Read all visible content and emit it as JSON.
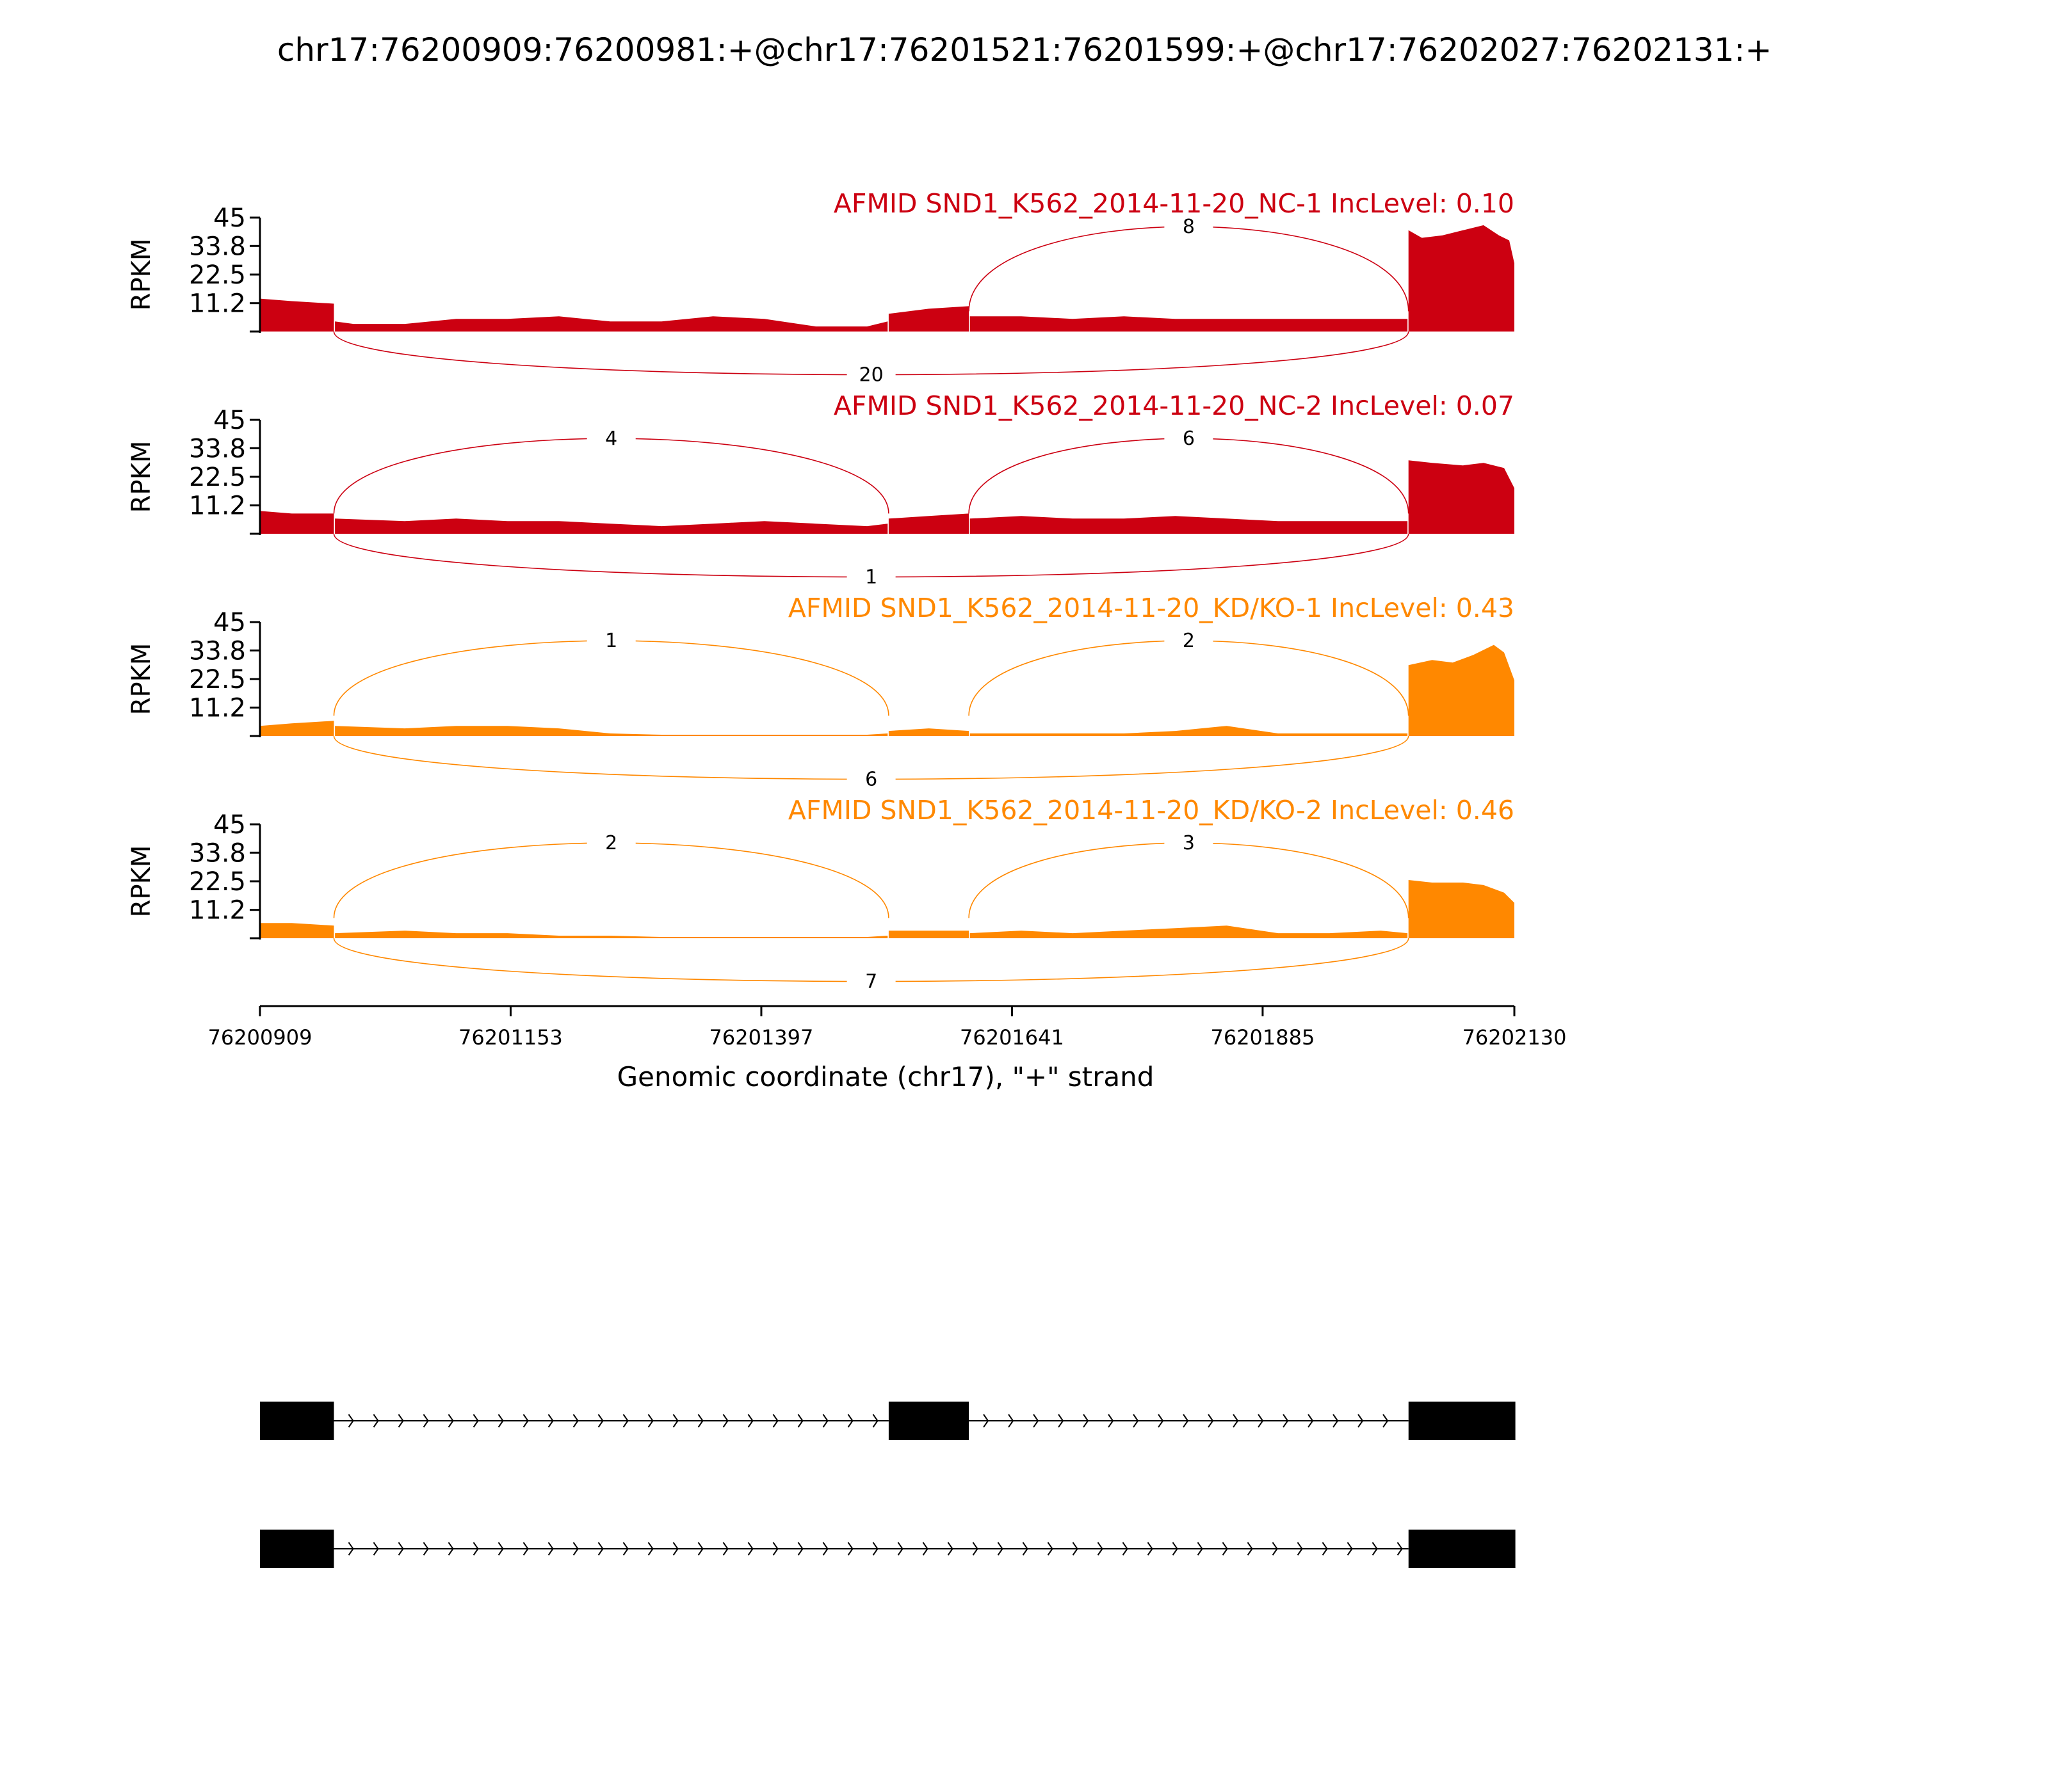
{
  "figure": {
    "title": "chr17:76200909:76200981:+@chr17:76201521:76201599:+@chr17:76202027:76202131:+"
  },
  "chart_data": {
    "type": "area",
    "title": "chr17:76200909:76200981:+@chr17:76201521:76201599:+@chr17:76202027:76202131:+",
    "xlabel": "Genomic coordinate (chr17), \"+\" strand",
    "ylabel": "RPKM",
    "xlim": [
      76200909,
      76202130
    ],
    "x_ticks": [
      "76200909",
      "76201153",
      "76201397",
      "76201641",
      "76201885",
      "76202130"
    ],
    "ylim": [
      0,
      45
    ],
    "y_ticks": [
      "45",
      "33.8",
      "22.5",
      "11.2"
    ],
    "exons": [
      [
        76200909,
        76200981
      ],
      [
        76201521,
        76201599
      ],
      [
        76202027,
        76202131
      ]
    ],
    "panels": [
      {
        "name": "AFMID SND1_K562_2014-11-20_NC-1 IncLevel: 0.10",
        "color": "#cc0011",
        "segments": [
          {
            "x": [
              76200909,
              76200940,
              76200981
            ],
            "y": [
              13,
              12,
              11
            ]
          },
          {
            "x": [
              76200982,
              76201000,
              76201050,
              76201100,
              76201150,
              76201200,
              76201250,
              76201300,
              76201350,
              76201400,
              76201450,
              76201500,
              76201520
            ],
            "y": [
              4,
              3,
              3,
              5,
              5,
              6,
              4,
              4,
              6,
              5,
              2,
              2,
              4
            ]
          },
          {
            "x": [
              76201521,
              76201560,
              76201599
            ],
            "y": [
              7,
              9,
              10
            ]
          },
          {
            "x": [
              76201600,
              76201650,
              76201700,
              76201750,
              76201800,
              76201850,
              76201900,
              76201950,
              76202000,
              76202026
            ],
            "y": [
              6,
              6,
              5,
              6,
              5,
              5,
              5,
              5,
              5,
              5
            ]
          },
          {
            "x": [
              76202027,
              76202040,
              76202060,
              76202080,
              76202100,
              76202115,
              76202125,
              76202130
            ],
            "y": [
              40,
              37,
              38,
              40,
              42,
              38,
              36,
              27
            ]
          }
        ],
        "junctions": [
          {
            "count": "8",
            "from": 76201599,
            "to": 76202027,
            "side": "above"
          },
          {
            "count": "20",
            "from": 76200981,
            "to": 76202027,
            "side": "below"
          }
        ]
      },
      {
        "name": "AFMID SND1_K562_2014-11-20_NC-2 IncLevel: 0.07",
        "color": "#cc0011",
        "segments": [
          {
            "x": [
              76200909,
              76200940,
              76200981
            ],
            "y": [
              9,
              8,
              8
            ]
          },
          {
            "x": [
              76200982,
              76201050,
              76201100,
              76201150,
              76201200,
              76201250,
              76201300,
              76201350,
              76201400,
              76201450,
              76201500,
              76201520
            ],
            "y": [
              6,
              5,
              6,
              5,
              5,
              4,
              3,
              4,
              5,
              4,
              3,
              4
            ]
          },
          {
            "x": [
              76201521,
              76201560,
              76201599
            ],
            "y": [
              6,
              7,
              8
            ]
          },
          {
            "x": [
              76201600,
              76201650,
              76201700,
              76201750,
              76201800,
              76201850,
              76201900,
              76201950,
              76202000,
              76202026
            ],
            "y": [
              6,
              7,
              6,
              6,
              7,
              6,
              5,
              5,
              5,
              5
            ]
          },
          {
            "x": [
              76202027,
              76202050,
              76202080,
              76202100,
              76202120,
              76202130
            ],
            "y": [
              29,
              28,
              27,
              28,
              26,
              18
            ]
          }
        ],
        "junctions": [
          {
            "count": "4",
            "from": 76200981,
            "to": 76201521,
            "side": "above"
          },
          {
            "count": "6",
            "from": 76201599,
            "to": 76202027,
            "side": "above"
          },
          {
            "count": "1",
            "from": 76200981,
            "to": 76202027,
            "side": "below"
          }
        ]
      },
      {
        "name": "AFMID SND1_K562_2014-11-20_KD/KO-1 IncLevel: 0.43",
        "color": "#ff8800",
        "segments": [
          {
            "x": [
              76200909,
              76200940,
              76200981
            ],
            "y": [
              4,
              5,
              6
            ]
          },
          {
            "x": [
              76200982,
              76201050,
              76201100,
              76201150,
              76201200,
              76201250,
              76201300,
              76201350,
              76201400,
              76201450,
              76201500,
              76201520
            ],
            "y": [
              4,
              3,
              4,
              4,
              3,
              1,
              0.5,
              0.5,
              0.5,
              0.5,
              0.5,
              1
            ]
          },
          {
            "x": [
              76201521,
              76201560,
              76201599
            ],
            "y": [
              2,
              3,
              2
            ]
          },
          {
            "x": [
              76201600,
              76201650,
              76201700,
              76201750,
              76201800,
              76201850,
              76201900,
              76201950,
              76202000,
              76202026
            ],
            "y": [
              1,
              1,
              1,
              1,
              2,
              4,
              1,
              1,
              1,
              1
            ]
          },
          {
            "x": [
              76202027,
              76202050,
              76202070,
              76202090,
              76202110,
              76202120,
              76202130
            ],
            "y": [
              28,
              30,
              29,
              32,
              36,
              33,
              22
            ]
          }
        ],
        "junctions": [
          {
            "count": "1",
            "from": 76200981,
            "to": 76201521,
            "side": "above"
          },
          {
            "count": "2",
            "from": 76201599,
            "to": 76202027,
            "side": "above"
          },
          {
            "count": "6",
            "from": 76200981,
            "to": 76202027,
            "side": "below"
          }
        ]
      },
      {
        "name": "AFMID SND1_K562_2014-11-20_KD/KO-2 IncLevel: 0.46",
        "color": "#ff8800",
        "segments": [
          {
            "x": [
              76200909,
              76200940,
              76200981
            ],
            "y": [
              6,
              6,
              5
            ]
          },
          {
            "x": [
              76200982,
              76201050,
              76201100,
              76201150,
              76201200,
              76201250,
              76201300,
              76201350,
              76201400,
              76201450,
              76201500,
              76201520
            ],
            "y": [
              2,
              3,
              2,
              2,
              1,
              1,
              0.5,
              0.5,
              0.5,
              0.5,
              0.5,
              1
            ]
          },
          {
            "x": [
              76201521,
              76201560,
              76201599
            ],
            "y": [
              3,
              3,
              3
            ]
          },
          {
            "x": [
              76201600,
              76201650,
              76201700,
              76201750,
              76201800,
              76201850,
              76201900,
              76201950,
              76202000,
              76202026
            ],
            "y": [
              2,
              3,
              2,
              3,
              4,
              5,
              2,
              2,
              3,
              2
            ]
          },
          {
            "x": [
              76202027,
              76202050,
              76202080,
              76202100,
              76202120,
              76202130
            ],
            "y": [
              23,
              22,
              22,
              21,
              18,
              14
            ]
          }
        ],
        "junctions": [
          {
            "count": "2",
            "from": 76200981,
            "to": 76201521,
            "side": "above"
          },
          {
            "count": "3",
            "from": 76201599,
            "to": 76202027,
            "side": "above"
          },
          {
            "count": "7",
            "from": 76200981,
            "to": 76202027,
            "side": "below"
          }
        ]
      }
    ],
    "isoforms": [
      {
        "exons": [
          [
            76200909,
            76200981
          ],
          [
            76201521,
            76201599
          ],
          [
            76202027,
            76202131
          ]
        ]
      },
      {
        "exons": [
          [
            76200909,
            76200981
          ],
          [
            76202027,
            76202131
          ]
        ]
      }
    ]
  }
}
